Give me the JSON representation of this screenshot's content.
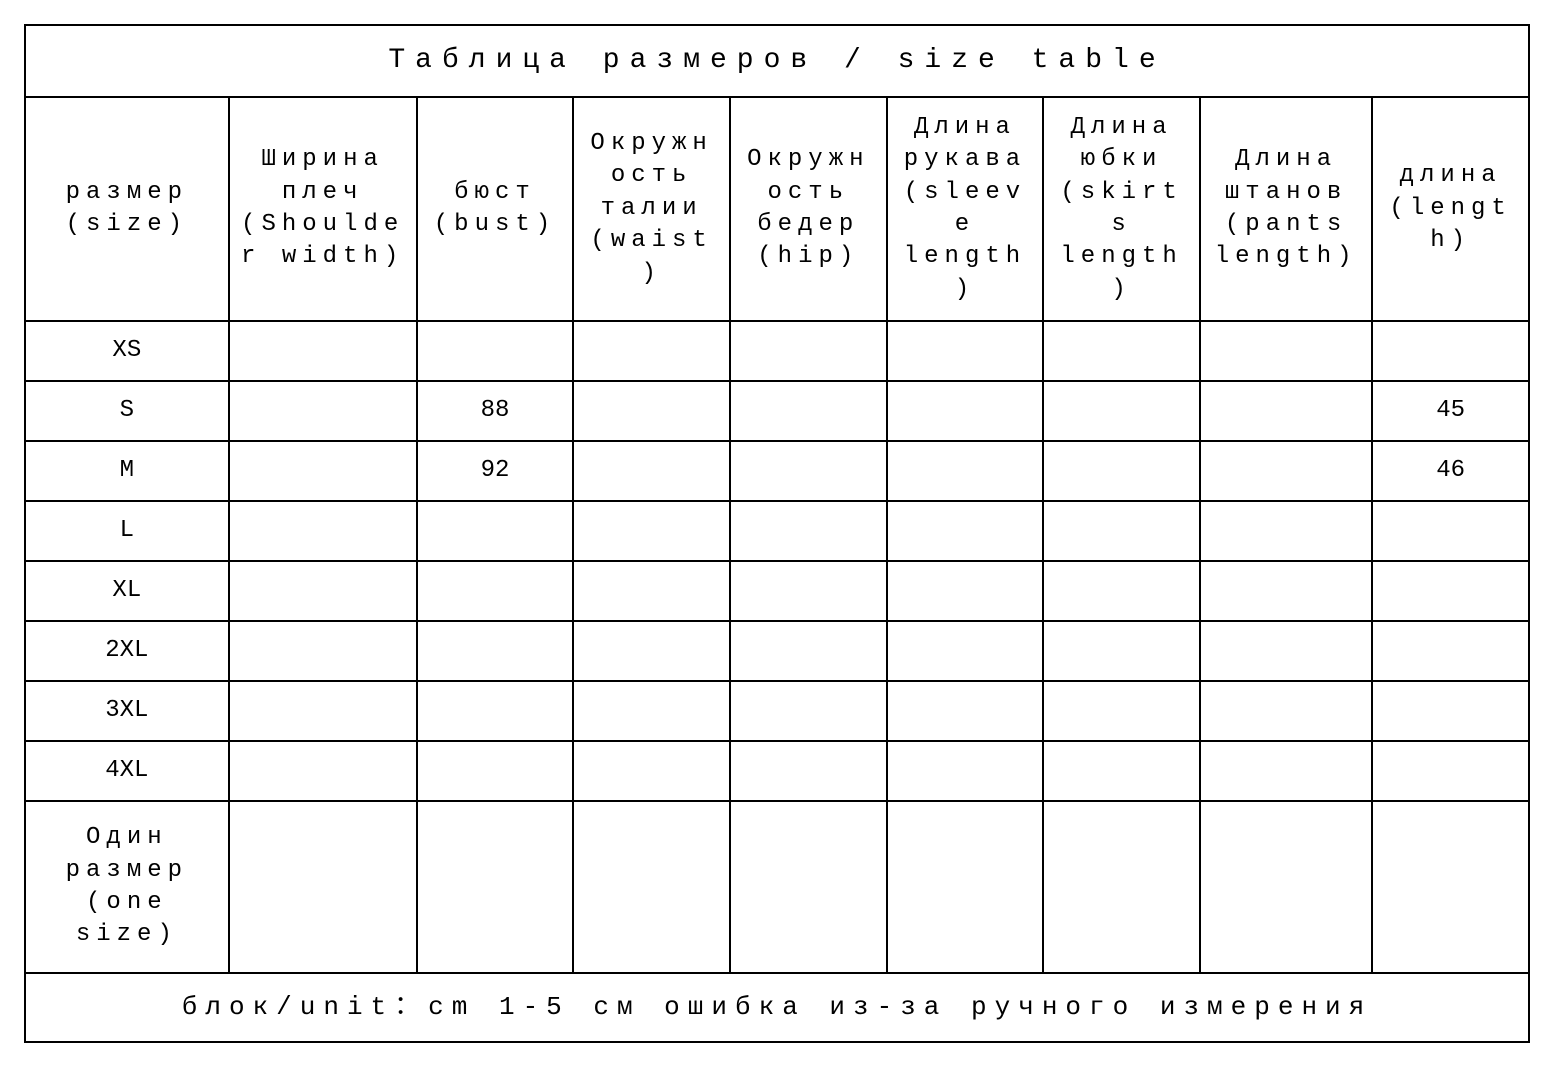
{
  "table": {
    "title": "Таблица размеров / size table",
    "footer": "блок/unit：cm 1-5 см ошибка из-за ручного измерения",
    "headers": [
      "размер (size)",
      "Ширина плеч (Shoulder width)",
      "бюст (bust)",
      "Окружность талии (waist)",
      "Окружность бедер (hip)",
      "Длина рукава (sleeve length)",
      "Длина юбки (skirts length)",
      "Длина штанов (pants length)",
      "длина (length)"
    ],
    "rows": [
      {
        "size": "XS",
        "shoulder": "",
        "bust": "",
        "waist": "",
        "hip": "",
        "sleeve": "",
        "skirt": "",
        "pants": "",
        "length": ""
      },
      {
        "size": "S",
        "shoulder": "",
        "bust": "88",
        "waist": "",
        "hip": "",
        "sleeve": "",
        "skirt": "",
        "pants": "",
        "length": "45"
      },
      {
        "size": "M",
        "shoulder": "",
        "bust": "92",
        "waist": "",
        "hip": "",
        "sleeve": "",
        "skirt": "",
        "pants": "",
        "length": "46"
      },
      {
        "size": "L",
        "shoulder": "",
        "bust": "",
        "waist": "",
        "hip": "",
        "sleeve": "",
        "skirt": "",
        "pants": "",
        "length": ""
      },
      {
        "size": "XL",
        "shoulder": "",
        "bust": "",
        "waist": "",
        "hip": "",
        "sleeve": "",
        "skirt": "",
        "pants": "",
        "length": ""
      },
      {
        "size": "2XL",
        "shoulder": "",
        "bust": "",
        "waist": "",
        "hip": "",
        "sleeve": "",
        "skirt": "",
        "pants": "",
        "length": ""
      },
      {
        "size": "3XL",
        "shoulder": "",
        "bust": "",
        "waist": "",
        "hip": "",
        "sleeve": "",
        "skirt": "",
        "pants": "",
        "length": ""
      },
      {
        "size": "4XL",
        "shoulder": "",
        "bust": "",
        "waist": "",
        "hip": "",
        "sleeve": "",
        "skirt": "",
        "pants": "",
        "length": ""
      },
      {
        "size": "Один размер (one size)",
        "shoulder": "",
        "bust": "",
        "waist": "",
        "hip": "",
        "sleeve": "",
        "skirt": "",
        "pants": "",
        "length": ""
      }
    ],
    "styling": {
      "border_color": "#000000",
      "background_color": "#ffffff",
      "text_color": "#000000",
      "font_family": "Courier New, monospace",
      "title_fontsize": 28,
      "header_fontsize": 24,
      "cell_fontsize": 24,
      "footer_fontsize": 26,
      "letter_spacing_title": 10,
      "letter_spacing_header": 6,
      "letter_spacing_footer": 8,
      "border_width": 2,
      "column_widths_pct": [
        13,
        12,
        10,
        10,
        10,
        10,
        10,
        11,
        10
      ]
    }
  }
}
